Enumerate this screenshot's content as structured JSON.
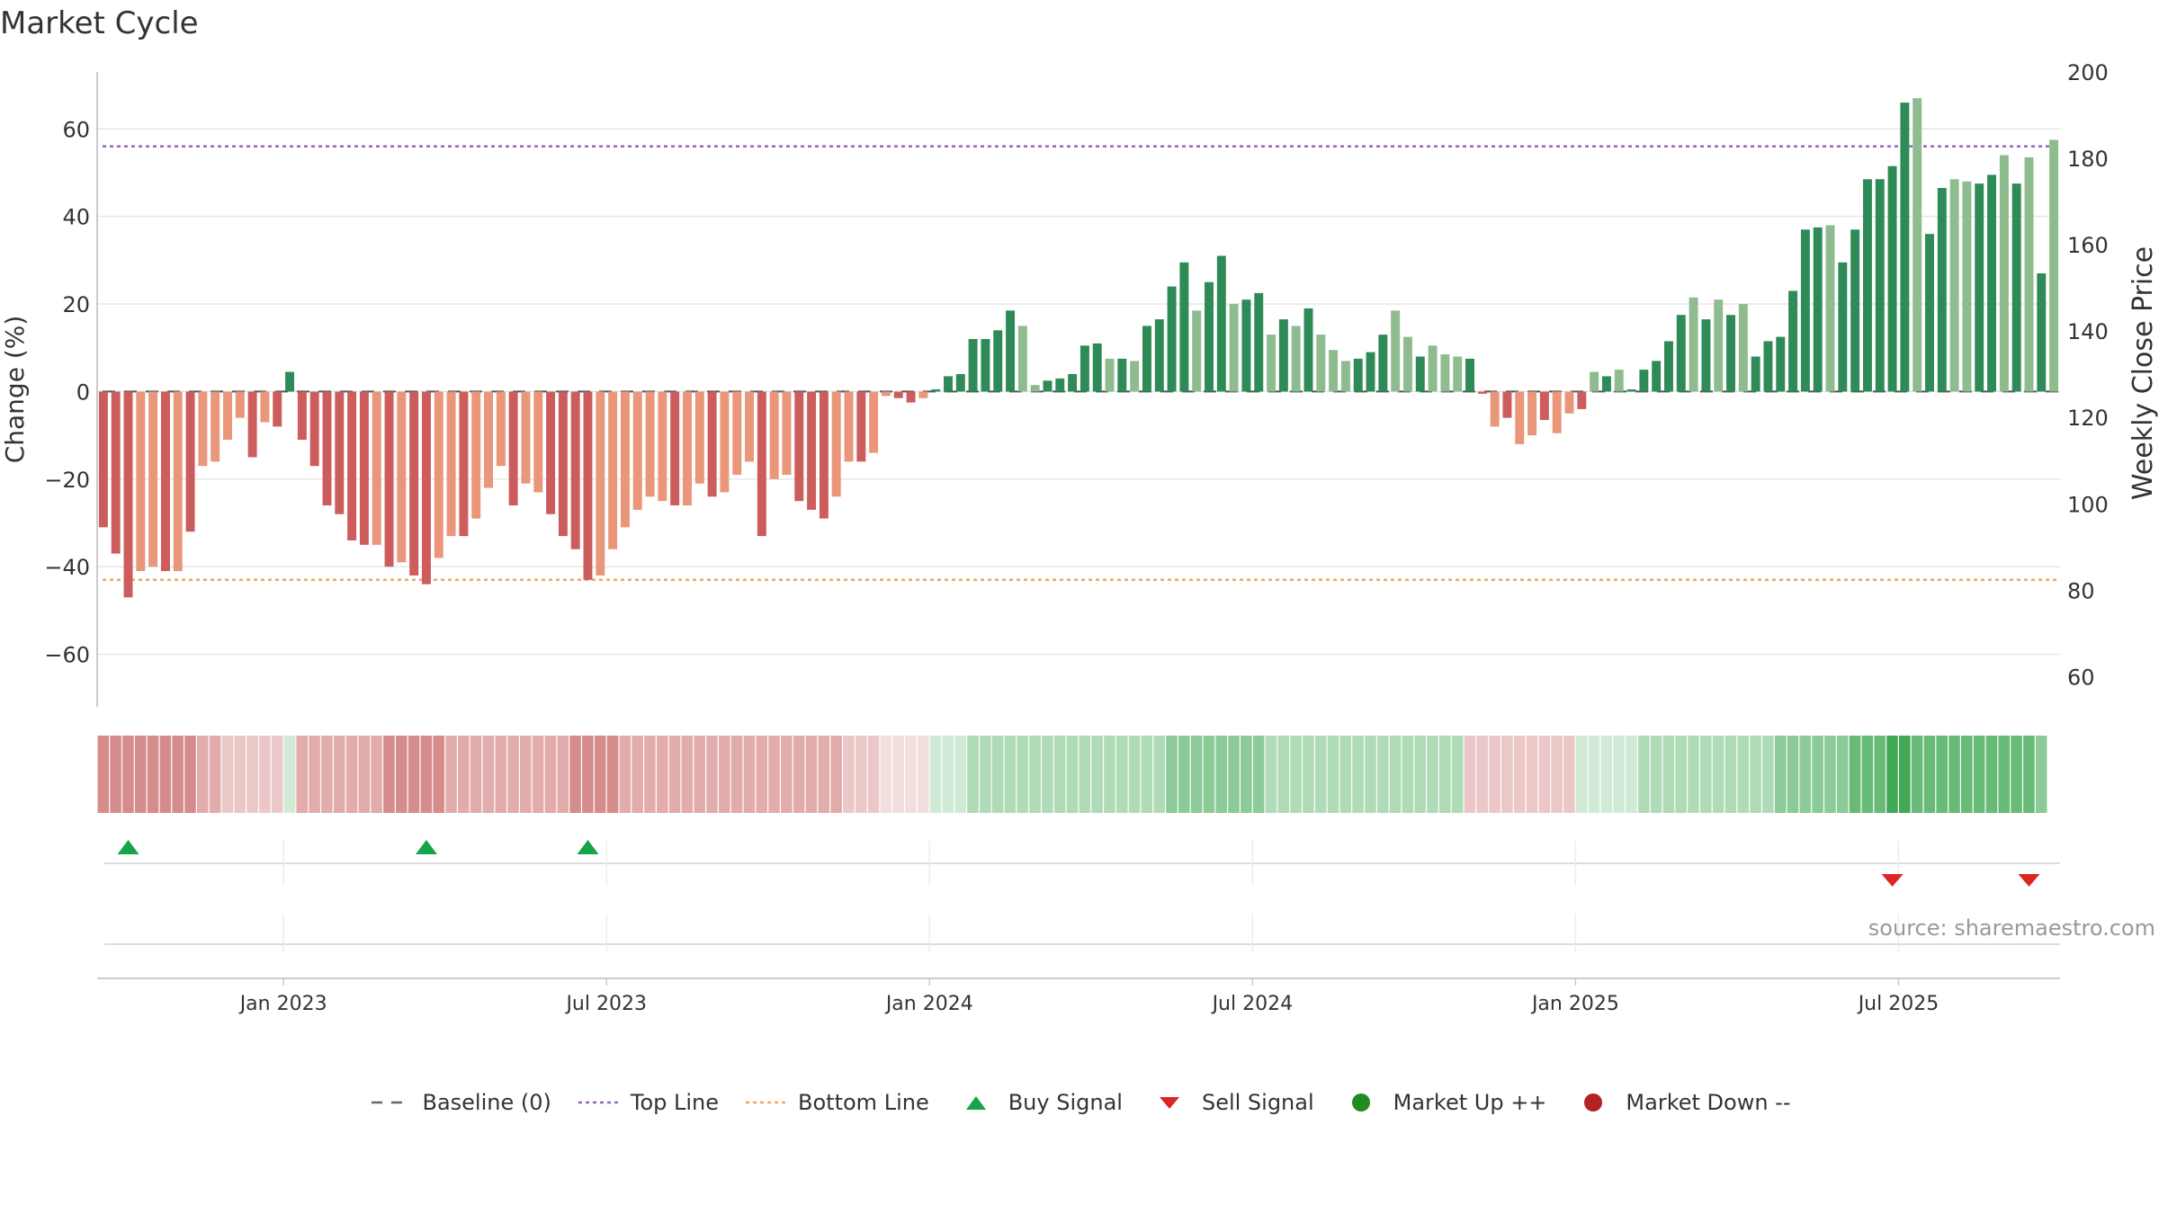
{
  "title": "Market Cycle",
  "source": "source: sharemaestro.com",
  "colors": {
    "red_strong": "#cd5c5c",
    "red_light": "#e9967a",
    "green_strong": "#2e8b57",
    "green_light": "#8fbc8f",
    "top_line": "#9467bd",
    "bottom_line": "#f4a460",
    "buy": "#16a34a",
    "sell": "#dc2626",
    "grid": "#e6e6e6"
  },
  "legend": [
    {
      "label": "Baseline (0)",
      "kind": "dash",
      "color": "#666666"
    },
    {
      "label": "Top Line",
      "kind": "dot",
      "color": "#9467bd"
    },
    {
      "label": "Bottom Line",
      "kind": "dot",
      "color": "#f4a460"
    },
    {
      "label": "Buy Signal",
      "kind": "triangle-up",
      "color": "#16a34a"
    },
    {
      "label": "Sell Signal",
      "kind": "triangle-down",
      "color": "#dc2626"
    },
    {
      "label": "Market Up ++",
      "kind": "circle",
      "color": "#228b22"
    },
    {
      "label": "Market Down --",
      "kind": "circle",
      "color": "#b22222"
    }
  ],
  "chart_data": {
    "type": "bar",
    "title": "Market Cycle",
    "ylabel": "Change (%)",
    "y2label": "Weekly Close Price",
    "ylim": [
      -72,
      73
    ],
    "y2lim": [
      53,
      200
    ],
    "yticks": [
      60,
      40,
      20,
      0,
      -20,
      -40,
      -60
    ],
    "yticklabels": [
      "60",
      "40",
      "20",
      "0",
      "−20",
      "−40",
      "−60"
    ],
    "y2ticks": [
      200,
      180,
      160,
      140,
      120,
      100,
      80,
      60
    ],
    "y2ticklabels": [
      "200",
      "180",
      "160",
      "140",
      "120",
      "100",
      "80",
      "60"
    ],
    "xticks": [
      "Jan 2023",
      "Jul 2023",
      "Jan 2024",
      "Jul 2024",
      "Jan 2025",
      "Jul 2025"
    ],
    "xtick_week_index": [
      15,
      41,
      67,
      93,
      119,
      145
    ],
    "top_line": 56,
    "bottom_line": -43,
    "grid": true,
    "legend_position": "bottom",
    "values": [
      -31,
      -37,
      -47,
      -41,
      -40,
      -41,
      -41,
      -32,
      -17,
      -16,
      -11,
      -6,
      -15,
      -7,
      -8,
      4.5,
      -11,
      -17,
      -26,
      -28,
      -34,
      -35,
      -35,
      -40,
      -39,
      -42,
      -44,
      -38,
      -33,
      -33,
      -29,
      -22,
      -17,
      -26,
      -21,
      -23,
      -28,
      -33,
      -36,
      -43,
      -42,
      -36,
      -31,
      -27,
      -24,
      -25,
      -26,
      -26,
      -21,
      -24,
      -23,
      -19,
      -16,
      -33,
      -20,
      -19,
      -25,
      -27,
      -29,
      -24,
      -16,
      -16,
      -14,
      -1,
      -1.5,
      -2.5,
      -1.5,
      0.5,
      3.5,
      4,
      12,
      12,
      14,
      18.5,
      15,
      1.5,
      2.5,
      3,
      4,
      10.5,
      11,
      7.5,
      7.5,
      7,
      15,
      16.5,
      24,
      29.5,
      18.5,
      25,
      31,
      20,
      21,
      22.5,
      13,
      16.5,
      15,
      19,
      13,
      9.5,
      7,
      7.5,
      9,
      13,
      18.5,
      12.5,
      8,
      10.5,
      8.5,
      8,
      7.5,
      -0.5,
      -8,
      -6,
      -12,
      -10,
      -6.5,
      -9.5,
      -5,
      -4,
      4.5,
      3.5,
      5,
      0.5,
      5,
      7,
      11.5,
      17.5,
      21.5,
      16.5,
      21,
      17.5,
      20,
      8,
      11.5,
      12.5,
      23,
      37,
      37.5,
      38,
      29.5,
      37,
      48.5,
      48.5,
      51.5,
      66,
      67,
      36,
      46.5,
      48.5,
      48,
      47.5,
      49.5,
      54,
      47.5,
      53.5,
      27,
      57.5
    ],
    "shades": [
      "s",
      "s",
      "s",
      "l",
      "l",
      "s",
      "l",
      "s",
      "l",
      "l",
      "l",
      "l",
      "s",
      "l",
      "s",
      "s",
      "s",
      "s",
      "s",
      "s",
      "s",
      "s",
      "l",
      "s",
      "l",
      "s",
      "s",
      "l",
      "l",
      "s",
      "l",
      "l",
      "l",
      "s",
      "l",
      "l",
      "s",
      "s",
      "s",
      "s",
      "l",
      "l",
      "l",
      "l",
      "l",
      "l",
      "s",
      "l",
      "l",
      "s",
      "l",
      "l",
      "l",
      "s",
      "l",
      "l",
      "s",
      "s",
      "s",
      "l",
      "l",
      "s",
      "l",
      "l",
      "s",
      "s",
      "l",
      "s",
      "s",
      "s",
      "s",
      "s",
      "s",
      "s",
      "l",
      "l",
      "s",
      "s",
      "s",
      "s",
      "s",
      "l",
      "s",
      "l",
      "s",
      "s",
      "s",
      "s",
      "l",
      "s",
      "s",
      "l",
      "s",
      "s",
      "l",
      "s",
      "l",
      "s",
      "l",
      "l",
      "l",
      "s",
      "s",
      "s",
      "l",
      "l",
      "s",
      "l",
      "l",
      "l",
      "s",
      "s",
      "l",
      "s",
      "l",
      "l",
      "s",
      "l",
      "l",
      "s",
      "l",
      "s",
      "l",
      "s",
      "s",
      "s",
      "s",
      "s",
      "l",
      "s",
      "l",
      "s",
      "l",
      "s",
      "s",
      "s",
      "s",
      "s",
      "s",
      "l",
      "s",
      "s",
      "s",
      "s",
      "s",
      "s",
      "l",
      "s",
      "s",
      "l",
      "l",
      "s",
      "s",
      "l",
      "s",
      "l",
      "s"
    ],
    "weekly_strength": [
      -4,
      -4,
      -4,
      -4,
      -4,
      -4,
      -4,
      -4,
      -3,
      -3,
      -2,
      -2,
      -2,
      -2,
      -2,
      1,
      -3,
      -3,
      -3,
      -3,
      -3,
      -3,
      -3,
      -4,
      -4,
      -4,
      -4,
      -4,
      -3,
      -3,
      -3,
      -3,
      -3,
      -3,
      -3,
      -3,
      -3,
      -3,
      -4,
      -4,
      -4,
      -4,
      -3,
      -3,
      -3,
      -3,
      -3,
      -3,
      -3,
      -3,
      -3,
      -3,
      -3,
      -3,
      -3,
      -3,
      -3,
      -3,
      -3,
      -3,
      -2,
      -2,
      -2,
      -1,
      -1,
      -1,
      -1,
      1,
      1,
      1,
      2,
      2,
      2,
      2,
      2,
      2,
      2,
      2,
      2,
      2,
      2,
      2,
      2,
      2,
      2,
      2,
      3,
      3,
      3,
      3,
      3,
      3,
      3,
      3,
      2,
      2,
      2,
      2,
      2,
      2,
      2,
      2,
      2,
      2,
      2,
      2,
      2,
      2,
      2,
      2,
      -2,
      -2,
      -2,
      -2,
      -2,
      -2,
      -2,
      -2,
      -2,
      1,
      1,
      1,
      1,
      1,
      2,
      2,
      2,
      2,
      2,
      2,
      2,
      2,
      2,
      2,
      2,
      3,
      3,
      3,
      3,
      3,
      3,
      4,
      4,
      4,
      5,
      5,
      4,
      4,
      4,
      4,
      4,
      4,
      4,
      4,
      4,
      4,
      3
    ],
    "buy_signal_weeks": [
      2,
      26,
      39
    ],
    "sell_signal_weeks": [
      144,
      155
    ],
    "market_up_weeks": [],
    "market_down_weeks": []
  }
}
